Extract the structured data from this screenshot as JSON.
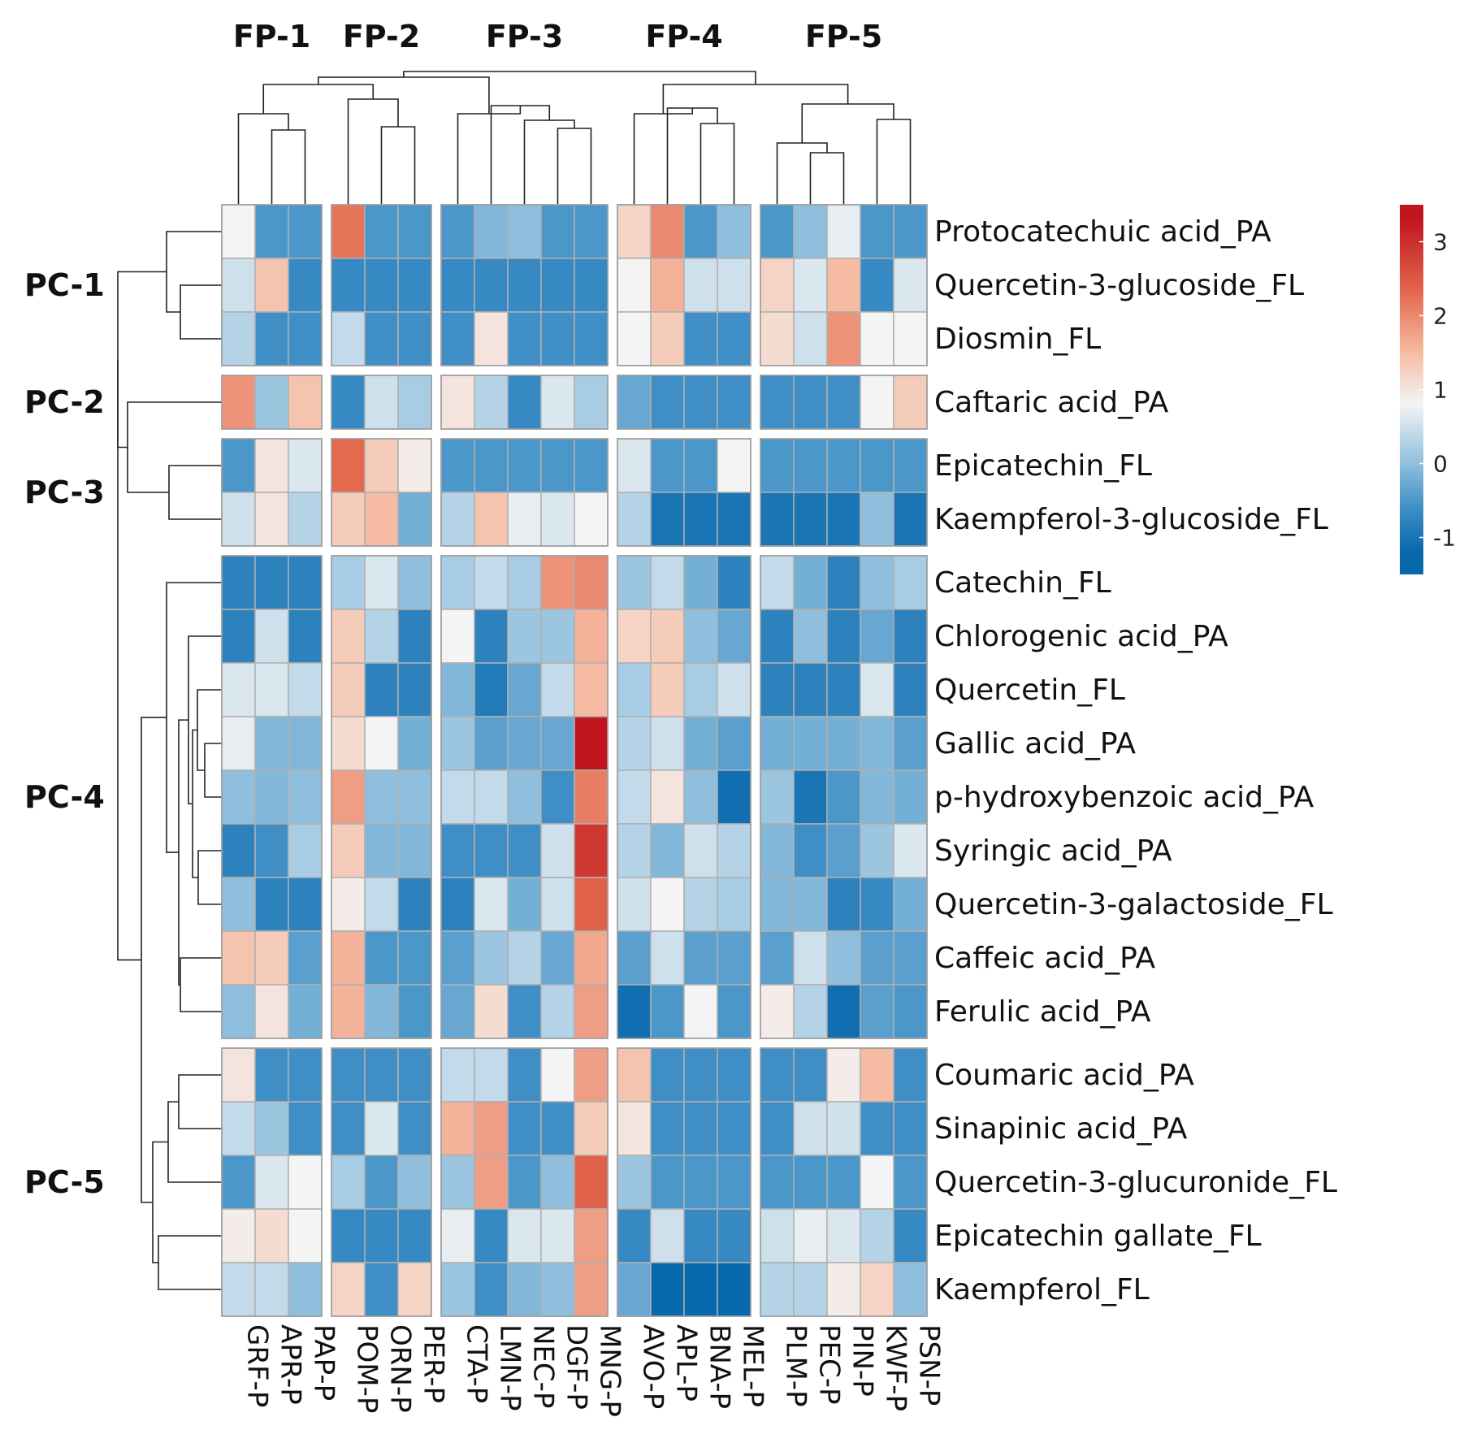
{
  "chart_data": {
    "type": "heatmap",
    "title": "",
    "column_groups": [
      {
        "label": "FP-1",
        "columns": [
          "GRF-P",
          "APR-P",
          "PAP-P"
        ]
      },
      {
        "label": "FP-2",
        "columns": [
          "POM-P",
          "ORN-P",
          "PER-P"
        ]
      },
      {
        "label": "FP-3",
        "columns": [
          "CTA-P",
          "LMN-P",
          "NEC-P",
          "DGF-P",
          "MNG-P"
        ]
      },
      {
        "label": "FP-4",
        "columns": [
          "AVO-P",
          "APL-P",
          "BNA-P",
          "MEL-P"
        ]
      },
      {
        "label": "FP-5",
        "columns": [
          "PLM-P",
          "PEC-P",
          "PIN-P",
          "KWF-P",
          "PSN-P"
        ]
      }
    ],
    "row_groups": [
      {
        "label": "PC-1",
        "rows": [
          "Protocatechuic acid_PA",
          "Quercetin-3-glucoside_FL",
          "Diosmin_FL"
        ]
      },
      {
        "label": "PC-2",
        "rows": [
          "Caftaric acid_PA"
        ]
      },
      {
        "label": "PC-3",
        "rows": [
          "Epicatechin_FL",
          "Kaempferol-3-glucoside_FL"
        ]
      },
      {
        "label": "PC-4",
        "rows": [
          "Catechin_FL",
          "Chlorogenic acid_PA",
          "Quercetin_FL",
          "Gallic acid_PA",
          "p-hydroxybenzoic acid_PA",
          "Syringic acid_PA",
          "Quercetin-3-galactoside_FL",
          "Caffeic acid_PA",
          "Ferulic acid_PA"
        ]
      },
      {
        "label": "PC-5",
        "rows": [
          "Coumaric acid_PA",
          "Sinapinic acid_PA",
          "Quercetin-3-glucuronide_FL",
          "Epicatechin gallate_FL",
          "Kaempferol_FL"
        ]
      }
    ],
    "values": [
      [
        0.8,
        -0.5,
        -0.5,
        2.2,
        -0.5,
        -0.5,
        -0.5,
        -0.1,
        0.0,
        -0.5,
        -0.5,
        1.2,
        2.0,
        -0.5,
        0.0,
        -0.5,
        0.0,
        0.7,
        -0.5,
        -0.5
      ],
      [
        0.5,
        1.4,
        -0.7,
        -0.7,
        -0.7,
        -0.7,
        -0.7,
        -0.7,
        -0.7,
        -0.7,
        -0.7,
        0.8,
        1.6,
        0.5,
        0.5,
        1.2,
        0.6,
        1.5,
        -0.7,
        0.6
      ],
      [
        0.3,
        -0.6,
        -0.6,
        0.4,
        -0.6,
        -0.6,
        -0.6,
        1.0,
        -0.6,
        -0.6,
        -0.6,
        0.8,
        1.3,
        -0.6,
        -0.6,
        1.1,
        0.5,
        1.9,
        0.8,
        0.8
      ],
      [
        1.9,
        0.1,
        1.4,
        -0.7,
        0.5,
        0.2,
        1.0,
        0.3,
        -0.7,
        0.6,
        0.2,
        -0.3,
        -0.6,
        -0.6,
        -0.6,
        -0.6,
        -0.6,
        -0.6,
        0.8,
        1.3
      ],
      [
        -0.5,
        1.0,
        0.6,
        2.3,
        1.3,
        0.9,
        -0.5,
        -0.5,
        -0.5,
        -0.5,
        -0.5,
        0.6,
        -0.5,
        -0.5,
        0.8,
        -0.5,
        -0.5,
        -0.5,
        -0.5,
        -0.5
      ],
      [
        0.5,
        1.0,
        0.3,
        1.3,
        1.5,
        -0.2,
        0.3,
        1.4,
        0.7,
        0.6,
        0.8,
        0.3,
        -1.0,
        -1.0,
        -1.0,
        -1.0,
        -1.0,
        -1.0,
        0.0,
        -1.0
      ],
      [
        -0.8,
        -0.8,
        -0.8,
        0.2,
        0.6,
        0.0,
        0.2,
        0.4,
        0.2,
        1.9,
        2.0,
        0.1,
        0.4,
        -0.2,
        -0.8,
        0.4,
        -0.2,
        -0.8,
        0.0,
        0.2
      ],
      [
        -0.8,
        0.5,
        -0.8,
        1.3,
        0.3,
        -0.8,
        0.8,
        -0.8,
        0.1,
        0.1,
        1.6,
        1.2,
        1.3,
        0.0,
        -0.3,
        -0.8,
        0.0,
        -0.8,
        -0.3,
        -0.8
      ],
      [
        0.6,
        0.6,
        0.4,
        1.3,
        -0.8,
        -0.8,
        -0.1,
        -0.9,
        -0.3,
        0.4,
        1.5,
        0.2,
        1.3,
        0.2,
        0.5,
        -0.8,
        -0.8,
        -0.8,
        0.6,
        -0.8
      ],
      [
        0.7,
        -0.1,
        -0.1,
        1.1,
        0.8,
        -0.2,
        0.1,
        -0.4,
        -0.3,
        -0.3,
        3.3,
        0.3,
        0.5,
        -0.2,
        -0.4,
        -0.2,
        -0.2,
        -0.2,
        -0.1,
        -0.4
      ],
      [
        0.0,
        -0.1,
        0.0,
        1.8,
        0.0,
        0.0,
        0.4,
        0.4,
        0.0,
        -0.6,
        2.1,
        0.4,
        1.0,
        0.0,
        -1.1,
        0.1,
        -1.0,
        -0.5,
        -0.1,
        -0.2
      ],
      [
        -0.8,
        -0.6,
        0.2,
        1.3,
        -0.1,
        -0.1,
        -0.6,
        -0.6,
        -0.6,
        0.5,
        2.9,
        0.3,
        -0.1,
        0.5,
        0.3,
        -0.1,
        -0.6,
        -0.4,
        0.1,
        0.6
      ],
      [
        0.0,
        -0.8,
        -0.8,
        0.9,
        0.4,
        -0.8,
        -0.8,
        0.6,
        -0.2,
        0.5,
        2.4,
        0.5,
        0.8,
        0.3,
        0.2,
        -0.1,
        -0.1,
        -0.8,
        -0.7,
        -0.2
      ],
      [
        1.4,
        1.3,
        -0.4,
        1.6,
        -0.5,
        -0.5,
        -0.4,
        0.1,
        0.3,
        -0.3,
        1.7,
        -0.4,
        0.5,
        -0.4,
        -0.4,
        -0.4,
        0.5,
        0.0,
        -0.4,
        -0.4
      ],
      [
        0.0,
        1.0,
        -0.2,
        1.6,
        -0.1,
        -0.5,
        -0.3,
        1.1,
        -0.6,
        0.3,
        1.8,
        -1.1,
        -0.5,
        0.8,
        -0.5,
        0.9,
        0.3,
        -1.1,
        -0.4,
        -0.5
      ],
      [
        1.0,
        -0.6,
        -0.6,
        -0.6,
        -0.6,
        -0.6,
        0.4,
        0.4,
        -0.6,
        0.8,
        1.8,
        1.4,
        -0.6,
        -0.6,
        -0.6,
        -0.6,
        -0.6,
        0.9,
        1.5,
        -0.6
      ],
      [
        0.4,
        0.1,
        -0.6,
        -0.6,
        0.6,
        -0.6,
        1.6,
        1.8,
        -0.6,
        -0.6,
        1.3,
        1.0,
        -0.6,
        -0.6,
        -0.6,
        -0.6,
        0.5,
        0.5,
        -0.6,
        -0.6
      ],
      [
        -0.5,
        0.6,
        0.8,
        0.2,
        -0.5,
        0.0,
        0.1,
        1.8,
        -0.5,
        0.0,
        2.4,
        0.1,
        -0.5,
        -0.5,
        -0.5,
        -0.5,
        -0.5,
        -0.5,
        0.8,
        -0.5
      ],
      [
        0.9,
        1.1,
        0.8,
        -0.7,
        -0.7,
        -0.7,
        0.7,
        -0.7,
        0.6,
        0.6,
        1.8,
        -0.7,
        0.5,
        -0.7,
        -0.7,
        0.5,
        0.7,
        0.6,
        0.3,
        -0.7
      ],
      [
        0.4,
        0.4,
        0.0,
        1.2,
        -0.6,
        1.2,
        0.1,
        -0.6,
        -0.1,
        0.0,
        1.8,
        -0.3,
        -1.2,
        -1.2,
        -1.2,
        0.3,
        0.3,
        0.9,
        1.2,
        0.0
      ]
    ],
    "colorbar": {
      "ticks": [
        3,
        2,
        1,
        0,
        -1
      ],
      "range": [
        -1.5,
        3.5
      ],
      "colors": [
        "#0868ac",
        "#3f8fc6",
        "#8fbfdd",
        "#f4f4f4",
        "#f5bca3",
        "#e46a4f",
        "#c1161f"
      ]
    },
    "xlabel": "",
    "ylabel": ""
  }
}
